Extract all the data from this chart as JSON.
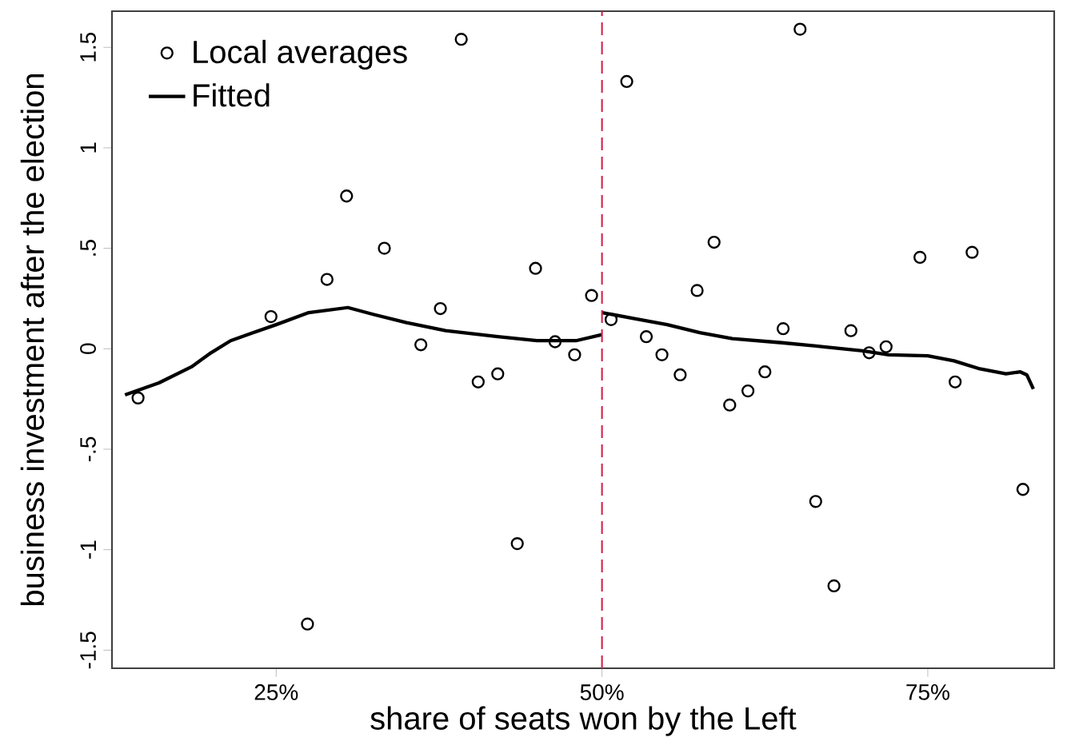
{
  "chart_data": {
    "type": "scatter",
    "xlabel": "share of seats won by the Left",
    "ylabel": "business investment after the election",
    "xlim": [
      12.4,
      84.7
    ],
    "ylim": [
      -1.59,
      1.68
    ],
    "xticks": [
      {
        "value": 25,
        "label": "25%"
      },
      {
        "value": 50,
        "label": "50%"
      },
      {
        "value": 75,
        "label": "75%"
      }
    ],
    "yticks": [
      -1.5,
      {
        "value": -1,
        "label": "-1"
      },
      {
        "value": -0.5,
        "label": "-.5"
      },
      0,
      {
        "value": 0.5,
        "label": ".5"
      },
      1,
      1.5
    ],
    "legend": "top left",
    "grid": false,
    "ref_lines": [
      {
        "axis": "x",
        "value": 50,
        "color": "#d2254f",
        "line_style": "dashed"
      }
    ],
    "series": [
      {
        "name": "Local averages",
        "marker": "circle",
        "color": "#000000",
        "x": [
          14.4,
          24.6,
          27.4,
          28.9,
          30.4,
          33.3,
          36.1,
          37.6,
          39.2,
          40.5,
          42.0,
          43.5,
          44.9,
          46.4,
          47.9,
          49.2,
          50.7,
          51.9,
          53.4,
          54.6,
          56.0,
          57.3,
          58.6,
          59.8,
          61.2,
          62.5,
          63.9,
          65.2,
          66.4,
          67.8,
          69.1,
          70.5,
          71.8,
          74.4,
          77.1,
          78.4,
          82.3
        ],
        "values": [
          -0.245,
          0.16,
          -1.37,
          0.345,
          0.76,
          0.5,
          0.02,
          0.2,
          1.54,
          -0.165,
          -0.125,
          -0.97,
          0.4,
          0.035,
          -0.03,
          0.265,
          0.145,
          1.33,
          0.06,
          -0.03,
          -0.13,
          0.29,
          0.53,
          -0.28,
          -0.21,
          -0.115,
          0.1,
          1.59,
          -0.76,
          -1.18,
          0.09,
          -0.02,
          0.01,
          0.455,
          -0.165,
          0.48,
          -0.7
        ]
      },
      {
        "name": "Fitted",
        "type": "line",
        "marker": "none",
        "line_style": "solid",
        "color": "#000000",
        "x": [
          13.4,
          16,
          18.5,
          20,
          21.5,
          23,
          25,
          27.5,
          30.5,
          32.5,
          35,
          38,
          42,
          45,
          48,
          50
        ],
        "values": [
          -0.23,
          -0.17,
          -0.09,
          -0.02,
          0.04,
          0.075,
          0.12,
          0.18,
          0.205,
          0.17,
          0.13,
          0.09,
          0.06,
          0.04,
          0.04,
          0.07
        ]
      },
      {
        "type": "line",
        "marker": "none",
        "line_style": "solid",
        "color": "#000000",
        "x": [
          50,
          52.5,
          55,
          57.5,
          60,
          63.8,
          67,
          70,
          72,
          75,
          77,
          79,
          81,
          82.1,
          82.6,
          83.1
        ],
        "values": [
          0.18,
          0.15,
          0.12,
          0.08,
          0.05,
          0.03,
          0.01,
          -0.01,
          -0.03,
          -0.035,
          -0.06,
          -0.1,
          -0.125,
          -0.115,
          -0.13,
          -0.2
        ]
      }
    ]
  }
}
